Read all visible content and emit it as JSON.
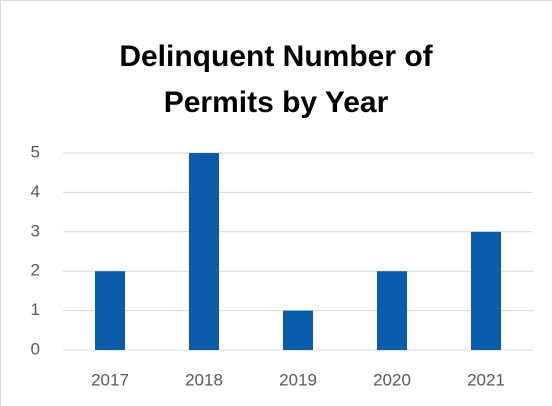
{
  "chart_data": {
    "type": "bar",
    "title": "Delinquent Number of Permits by Year",
    "categories": [
      "2017",
      "2018",
      "2019",
      "2020",
      "2021"
    ],
    "values": [
      2,
      5,
      1,
      2,
      3
    ],
    "color": "#0b5cab",
    "ylim": [
      0,
      5
    ],
    "yticks": [
      0,
      1,
      2,
      3,
      4,
      5
    ],
    "grid": true
  }
}
